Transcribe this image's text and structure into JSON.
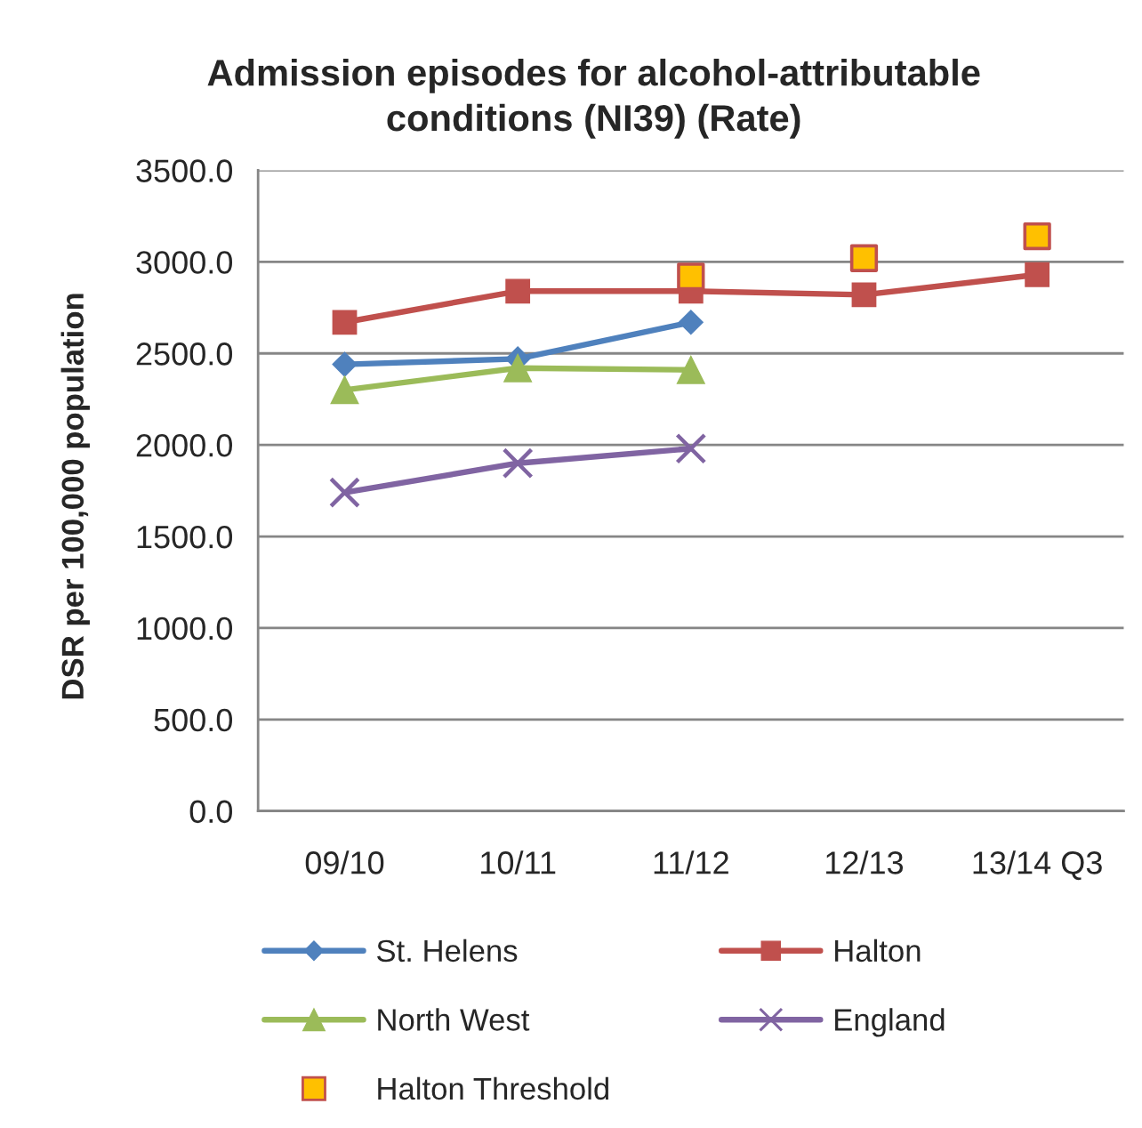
{
  "chart_data": {
    "type": "line",
    "title": "Admission episodes for alcohol-attributable\nconditions (NI39) (Rate)",
    "ylabel": "DSR per 100,000 population",
    "categories": [
      "09/10",
      "10/11",
      "11/12",
      "12/13",
      "13/14 Q3"
    ],
    "series": [
      {
        "name": "St. Helens",
        "color": "#4f81bd",
        "marker": "diamond",
        "values": [
          2440,
          2470,
          2670,
          null,
          null
        ]
      },
      {
        "name": "Halton",
        "color": "#c0504d",
        "marker": "square",
        "values": [
          2670,
          2840,
          2840,
          2820,
          2930
        ]
      },
      {
        "name": "North West",
        "color": "#9bbb59",
        "marker": "triangle",
        "values": [
          2300,
          2420,
          2410,
          null,
          null
        ]
      },
      {
        "name": "England",
        "color": "#8064a2",
        "marker": "cross",
        "values": [
          1740,
          1900,
          1980,
          null,
          null
        ]
      },
      {
        "name": "Halton Threshold",
        "type": "scatter",
        "color": "#ffc000",
        "marker": "square",
        "values": [
          null,
          null,
          2920,
          3020,
          3140
        ]
      }
    ],
    "ylim": [
      0,
      3500
    ],
    "yticks": [
      {
        "value": 0,
        "label": "0.0"
      },
      {
        "value": 500,
        "label": "500.0"
      },
      {
        "value": 1000,
        "label": "1000.0"
      },
      {
        "value": 1500,
        "label": "1500.0"
      },
      {
        "value": 2000,
        "label": "2000.0"
      },
      {
        "value": 2500,
        "label": "2500.0"
      },
      {
        "value": 3000,
        "label": "3000.0"
      },
      {
        "value": 3500,
        "label": "3500.0"
      }
    ],
    "grid": "y",
    "legend": "bottom",
    "line_style": "solid"
  }
}
